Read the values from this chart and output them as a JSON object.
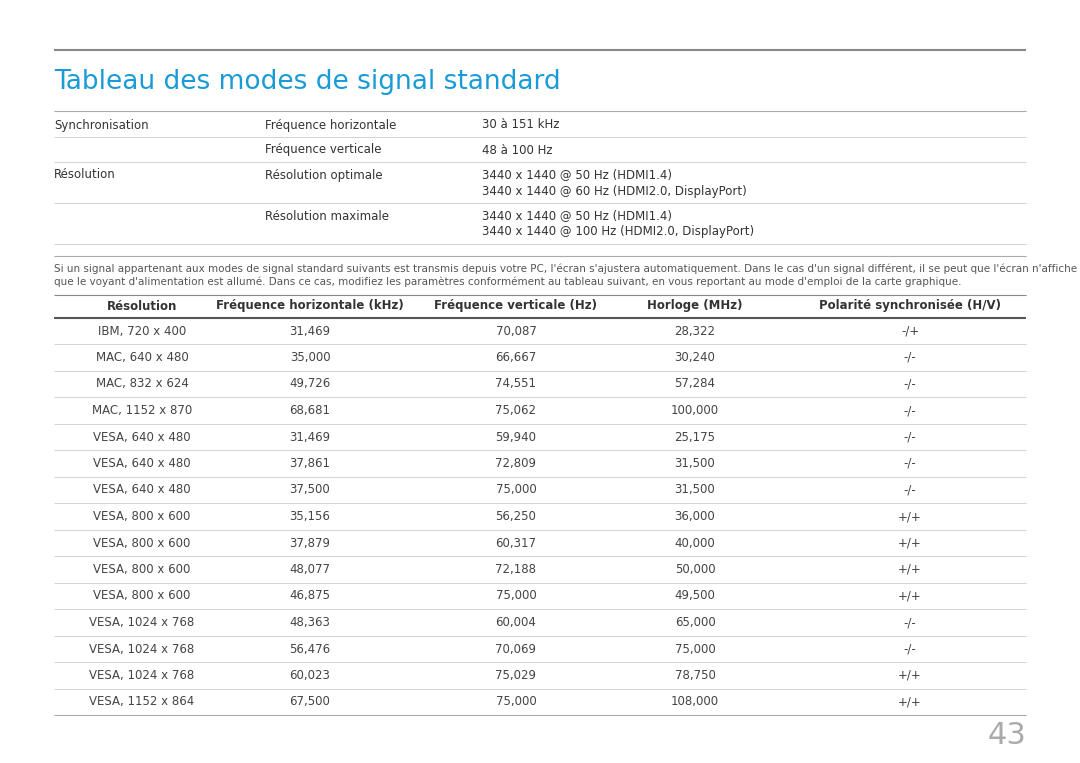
{
  "title": "Tableau des modes de signal standard",
  "title_color": "#1a9bd7",
  "page_number": "43",
  "page_number_color": "#aaaaaa",
  "bg_color": "#ffffff",
  "spec_table": {
    "rows": [
      {
        "col1": "Synchronisation",
        "col2": "Fréquence horizontale",
        "col3": "30 à 151 kHz"
      },
      {
        "col1": "",
        "col2": "Fréquence verticale",
        "col3": "48 à 100 Hz"
      },
      {
        "col1": "Résolution",
        "col2": "Résolution optimale",
        "col3": "3440 x 1440 @ 50 Hz (HDMI1.4)"
      },
      {
        "col1": "",
        "col2": "",
        "col3": "3440 x 1440 @ 60 Hz (HDMI2.0, DisplayPort)"
      },
      {
        "col1": "",
        "col2": "Résolution maximale",
        "col3": "3440 x 1440 @ 50 Hz (HDMI1.4)"
      },
      {
        "col1": "",
        "col2": "",
        "col3": "3440 x 1440 @ 100 Hz (HDMI2.0, DisplayPort)"
      }
    ]
  },
  "note_line1": "Si un signal appartenant aux modes de signal standard suivants est transmis depuis votre PC, l'écran s'ajustera automatiquement. Dans le cas d'un signal différent, il se peut que l'écran n'affiche aucune image alors",
  "note_line2": "que le voyant d'alimentation est allumé. Dans ce cas, modifiez les paramètres conformément au tableau suivant, en vous reportant au mode d'emploi de la carte graphique.",
  "main_table": {
    "headers": [
      "Résolution",
      "Fréquence horizontale (kHz)",
      "Fréquence verticale (Hz)",
      "Horloge (MHz)",
      "Polarité synchronisée (H/V)"
    ],
    "rows": [
      [
        "IBM, 720 x 400",
        "31,469",
        "70,087",
        "28,322",
        "-/+"
      ],
      [
        "MAC, 640 x 480",
        "35,000",
        "66,667",
        "30,240",
        "-/-"
      ],
      [
        "MAC, 832 x 624",
        "49,726",
        "74,551",
        "57,284",
        "-/-"
      ],
      [
        "MAC, 1152 x 870",
        "68,681",
        "75,062",
        "100,000",
        "-/-"
      ],
      [
        "VESA, 640 x 480",
        "31,469",
        "59,940",
        "25,175",
        "-/-"
      ],
      [
        "VESA, 640 x 480",
        "37,861",
        "72,809",
        "31,500",
        "-/-"
      ],
      [
        "VESA, 640 x 480",
        "37,500",
        "75,000",
        "31,500",
        "-/-"
      ],
      [
        "VESA, 800 x 600",
        "35,156",
        "56,250",
        "36,000",
        "+/+"
      ],
      [
        "VESA, 800 x 600",
        "37,879",
        "60,317",
        "40,000",
        "+/+"
      ],
      [
        "VESA, 800 x 600",
        "48,077",
        "72,188",
        "50,000",
        "+/+"
      ],
      [
        "VESA, 800 x 600",
        "46,875",
        "75,000",
        "49,500",
        "+/+"
      ],
      [
        "VESA, 1024 x 768",
        "48,363",
        "60,004",
        "65,000",
        "-/-"
      ],
      [
        "VESA, 1024 x 768",
        "56,476",
        "70,069",
        "75,000",
        "-/-"
      ],
      [
        "VESA, 1024 x 768",
        "60,023",
        "75,029",
        "78,750",
        "+/+"
      ],
      [
        "VESA, 1152 x 864",
        "67,500",
        "75,000",
        "108,000",
        "+/+"
      ]
    ]
  }
}
